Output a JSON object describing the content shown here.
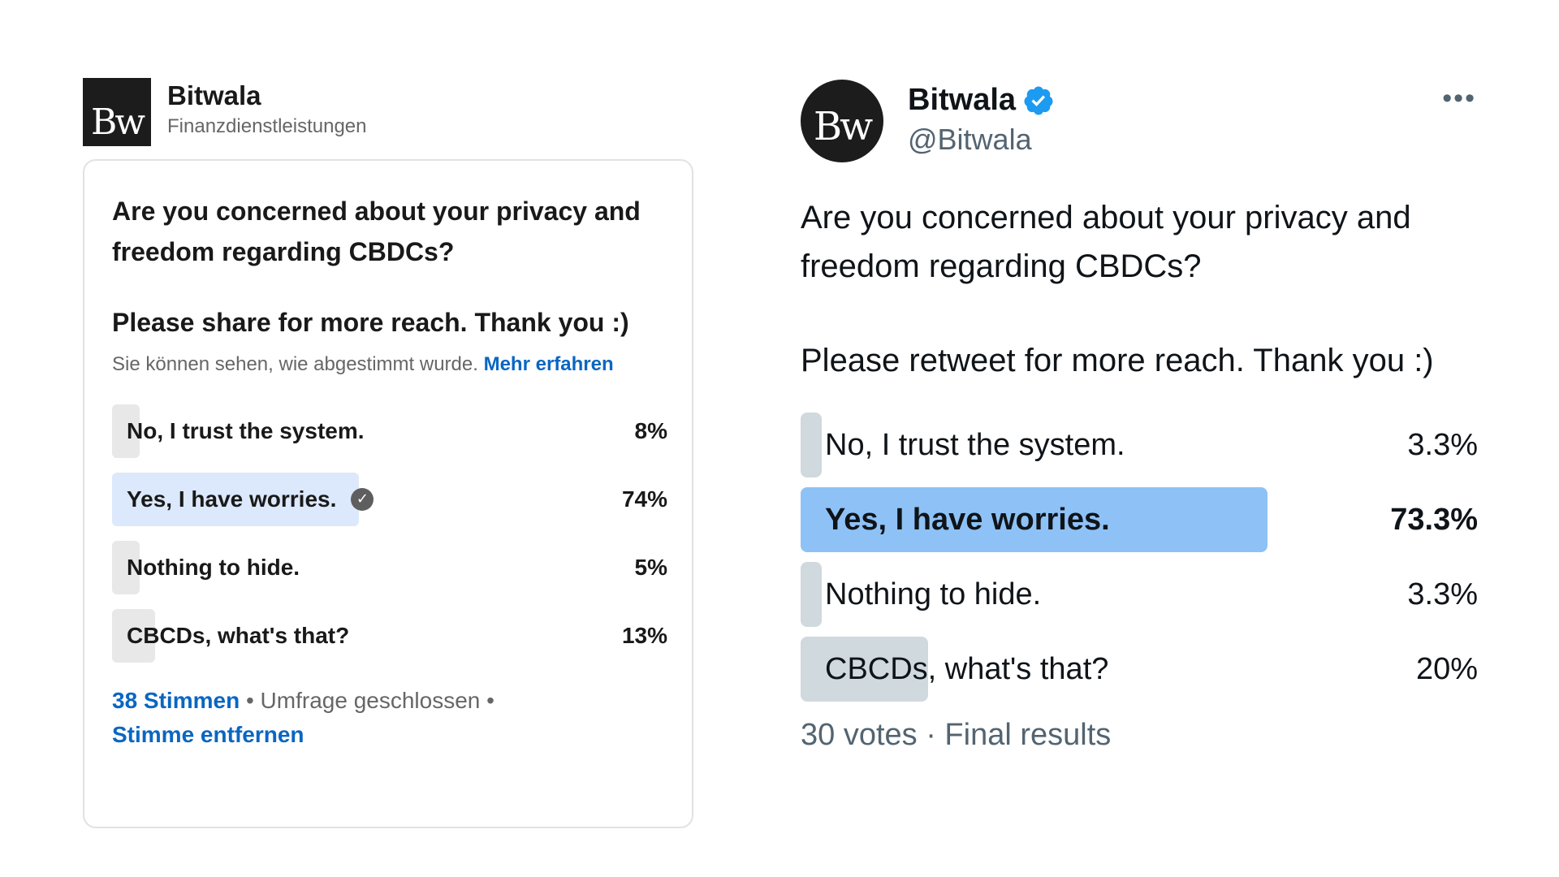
{
  "linkedin": {
    "logo_text": "Bw",
    "company_name": "Bitwala",
    "company_category": "Finanzdienstleistungen",
    "question": "Are you concerned about your privacy and freedom regarding CBDCs?",
    "question2": "Please share for more reach. Thank you :)",
    "note_text": "Sie können sehen, wie abgestimmt wurde.",
    "note_link": "Mehr erfahren",
    "options": [
      {
        "label": "No, I trust the system.",
        "percent": "8%",
        "fill": 0.08,
        "selected": false
      },
      {
        "label": "Yes, I have worries.",
        "percent": "74%",
        "fill": 0.74,
        "selected": true
      },
      {
        "label": "Nothing to hide.",
        "percent": "5%",
        "fill": 0.05,
        "selected": false
      },
      {
        "label": "CBCDs, what's that?",
        "percent": "13%",
        "fill": 0.13,
        "selected": false
      }
    ],
    "votes_link": "38 Stimmen",
    "poll_status": "Umfrage geschlossen",
    "separator": "•",
    "remove_vote_link": "Stimme entfernen",
    "check_icon": "checkmark-circle-icon",
    "accent_color": "#0a66c2"
  },
  "twitter": {
    "avatar_text": "Bw",
    "display_name": "Bitwala",
    "handle": "@Bitwala",
    "more_menu": "•••",
    "verified_icon": "verified-badge-icon",
    "question": "Are you concerned about your privacy and freedom regarding CBDCs?",
    "question2": "Please retweet for more reach. Thank you :)",
    "options": [
      {
        "label": "No, I trust the system.",
        "percent": "3.3%",
        "fill": 0.033,
        "winner": false
      },
      {
        "label": "Yes, I have worries.",
        "percent": "73.3%",
        "fill": 0.733,
        "winner": true
      },
      {
        "label": "Nothing to hide.",
        "percent": "3.3%",
        "fill": 0.033,
        "winner": false
      },
      {
        "label": "CBCDs, what's that?",
        "percent": "20%",
        "fill": 0.2,
        "winner": false
      }
    ],
    "footer": "30 votes · Final results",
    "accent_color": "#1d9bf0"
  }
}
